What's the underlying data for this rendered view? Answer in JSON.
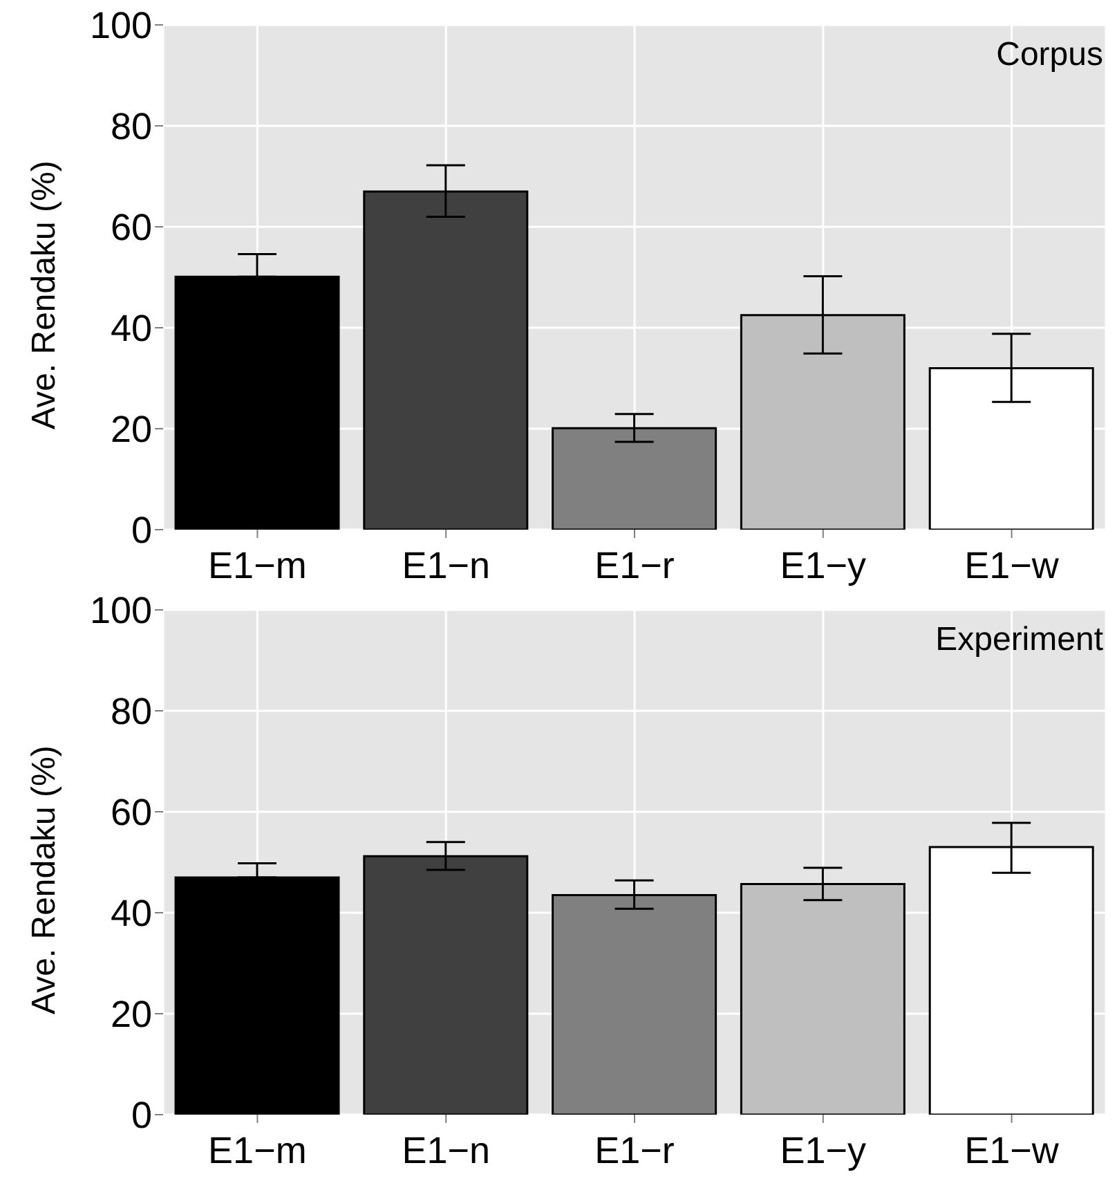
{
  "chart_data": [
    {
      "type": "bar",
      "ylabel": "Ave. Rendaku (%)",
      "annotations": [
        "Corpus"
      ],
      "categories": [
        "E1−m",
        "E1−n",
        "E1−r",
        "E1−y",
        "E1−w"
      ],
      "values": [
        50.1,
        67,
        20.1,
        42.5,
        32
      ],
      "colors": [
        "#000000",
        "#404040",
        "#808080",
        "#bfbfbf",
        "#ffffff"
      ],
      "errors": [
        [
          50.1,
          54.6
        ],
        [
          62,
          72.2
        ],
        [
          17.4,
          22.9
        ],
        [
          34.9,
          50.2
        ],
        [
          25.3,
          38.8
        ]
      ],
      "ylim": [
        0,
        100
      ],
      "yticks": [
        0,
        20,
        40,
        60,
        80,
        100
      ],
      "grid": true
    },
    {
      "type": "bar",
      "ylabel": "Ave. Rendaku (%)",
      "annotations": [
        "Experiment"
      ],
      "categories": [
        "E1−m",
        "E1−n",
        "E1−r",
        "E1−y",
        "E1−w"
      ],
      "values": [
        47,
        51.2,
        43.5,
        45.7,
        53
      ],
      "colors": [
        "#000000",
        "#404040",
        "#808080",
        "#bfbfbf",
        "#ffffff"
      ],
      "errors": [
        [
          47,
          49.8
        ],
        [
          48.5,
          54
        ],
        [
          40.8,
          46.4
        ],
        [
          42.5,
          48.9
        ],
        [
          47.9,
          57.8
        ]
      ],
      "ylim": [
        0,
        100
      ],
      "yticks": [
        0,
        20,
        40,
        60,
        80,
        100
      ],
      "grid": true
    }
  ]
}
